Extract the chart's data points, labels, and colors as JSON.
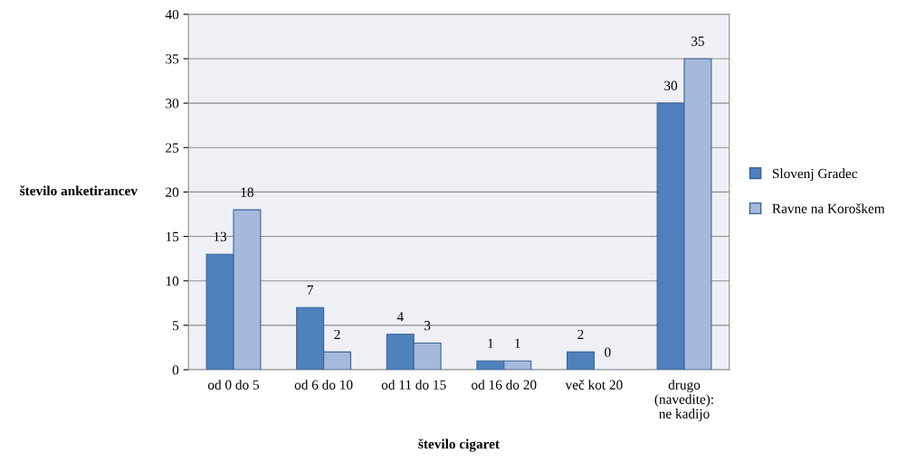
{
  "chart_data": {
    "type": "bar",
    "xlabel": "število cigaret",
    "ylabel": "število anketirancev",
    "categories": [
      "od 0 do 5",
      "od 6 do 10",
      "od 11 do 15",
      "od 16 do 20",
      "več kot 20",
      "drugo\n(navedite):\nne kadijo"
    ],
    "series": [
      {
        "name": "Slovenj Gradec",
        "color": "#4f81bd",
        "values": [
          13,
          7,
          4,
          1,
          2,
          30
        ]
      },
      {
        "name": "Ravne na Koroškem",
        "color": "#a5b9dc",
        "values": [
          18,
          2,
          3,
          1,
          0,
          35
        ]
      }
    ],
    "ylim": [
      0,
      40
    ],
    "yticks": [
      0,
      5,
      10,
      15,
      20,
      25,
      30,
      35,
      40
    ],
    "grid": "y",
    "legend": "right",
    "data_labels": true
  }
}
